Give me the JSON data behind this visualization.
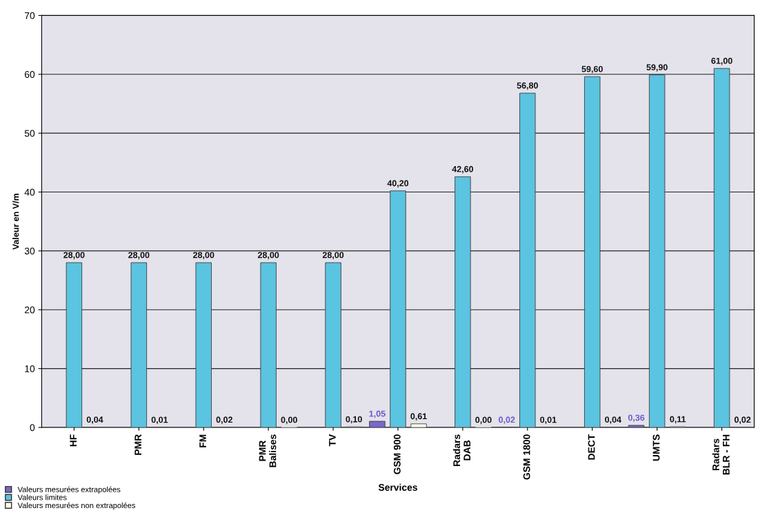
{
  "chart_data": {
    "type": "bar",
    "xlabel": "Services",
    "ylabel": "Valeur en V/m",
    "categories": [
      "HF",
      "PMR",
      "FM",
      "PMR\nBalises",
      "TV",
      "GSM 900",
      "Radars\nDAB",
      "GSM 1800",
      "DECT",
      "UMTS",
      "Radars\nBLR - FH"
    ],
    "series": [
      {
        "name": "Valeurs mesurées extrapolées",
        "color": "#7b68c8",
        "values": [
          null,
          null,
          null,
          null,
          null,
          1.05,
          null,
          0.02,
          null,
          0.36,
          null
        ],
        "value_labels": [
          null,
          null,
          null,
          null,
          null,
          "1,05",
          null,
          "0,02",
          null,
          "0,36",
          null
        ]
      },
      {
        "name": "Valeurs limites",
        "color": "#5bc4e0",
        "values": [
          28,
          28,
          28,
          28,
          28,
          40.2,
          42.6,
          56.8,
          59.6,
          59.9,
          61
        ],
        "value_labels": [
          "28,00",
          "28,00",
          "28,00",
          "28,00",
          "28,00",
          "40,20",
          "42,60",
          "56,80",
          "59,60",
          "59,90",
          "61,00"
        ]
      },
      {
        "name": "Valeurs mesurées non extrapolées",
        "color": "#ffffee",
        "values": [
          0.04,
          0.01,
          0.02,
          0.0,
          0.1,
          0.61,
          0.0,
          0.01,
          0.04,
          0.11,
          0.02
        ],
        "value_labels": [
          "0,04",
          "0,01",
          "0,02",
          "0,00",
          "0,10",
          "0,61",
          "0,00",
          "0,01",
          "0,04",
          "0,11",
          "0,02"
        ]
      }
    ],
    "ylim": [
      0,
      70
    ],
    "yticks": [
      0,
      10,
      20,
      30,
      40,
      50,
      60,
      70
    ],
    "grid": "y",
    "legend": "bottom left"
  }
}
